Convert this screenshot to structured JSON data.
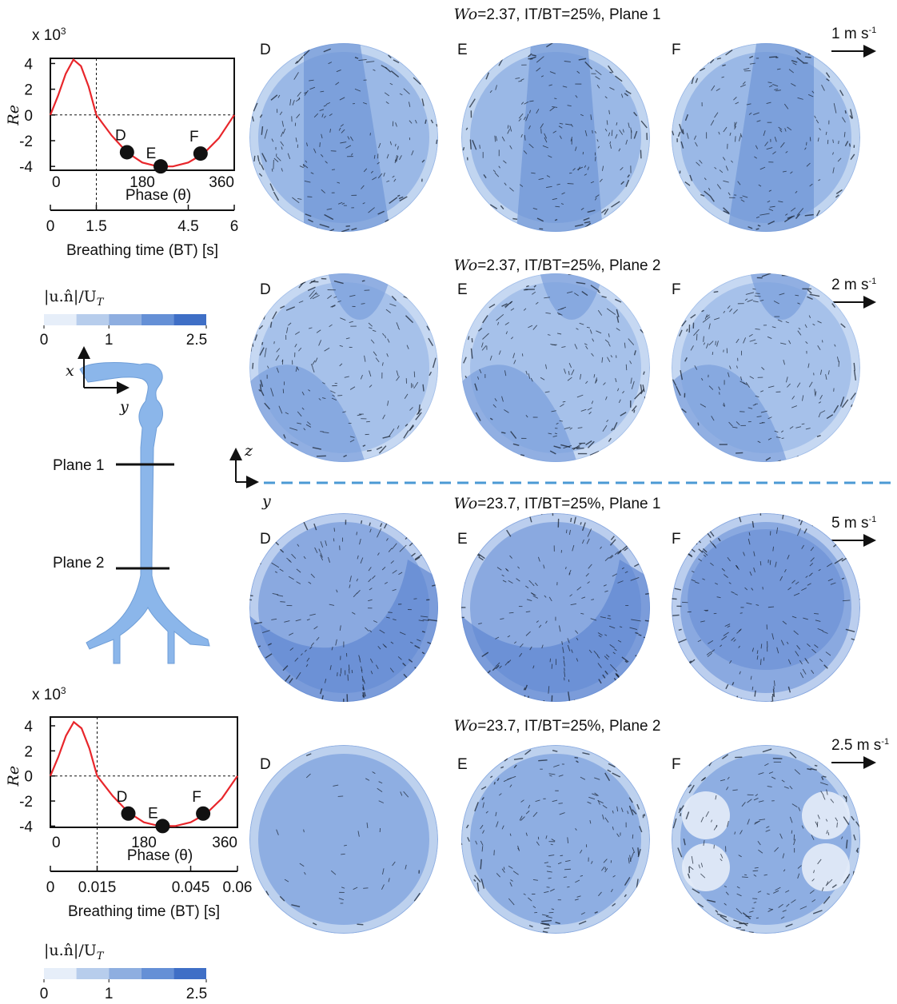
{
  "chart_data": [
    {
      "type": "line",
      "y_multiplier": "x 10",
      "y_multiplier_exp": "3",
      "ylabel": "Re",
      "x2label": "Phase (θ)",
      "x2lim": [
        0,
        360
      ],
      "x2ticks": [
        0,
        180,
        360
      ],
      "xlabel": "Breathing time (BT) [s]",
      "xlim": [
        0,
        6
      ],
      "xticks": [
        0,
        1.5,
        4.5,
        6
      ],
      "ylim": [
        -4.3,
        4.4
      ],
      "yticks": [
        4,
        2,
        0,
        -2,
        -4
      ],
      "vline_x": 1.5,
      "hline_y": 0,
      "color": "#e8262b",
      "x": [
        0,
        0.25,
        0.5,
        0.75,
        1.0,
        1.25,
        1.5,
        2,
        2.5,
        3,
        3.5,
        4,
        4.5,
        5,
        5.5,
        6
      ],
      "values": [
        0,
        1.5,
        3.2,
        4.3,
        3.8,
        2.2,
        0,
        -1.6,
        -2.9,
        -3.7,
        -4.0,
        -4.0,
        -3.7,
        -3.0,
        -1.8,
        0
      ],
      "points": {
        "x": [
          2.5,
          3.6,
          4.9
        ],
        "values": [
          -2.9,
          -4.0,
          -3.0
        ],
        "labels": [
          "D",
          "E",
          "F"
        ],
        "color": "#111111"
      }
    },
    {
      "type": "line",
      "y_multiplier": "x 10",
      "y_multiplier_exp": "3",
      "ylabel": "Re",
      "x2label": "Phase (θ)",
      "x2lim": [
        0,
        360
      ],
      "x2ticks": [
        0,
        180,
        360
      ],
      "xlabel": "Breathing time (BT) [s]",
      "xlim": [
        0,
        0.06
      ],
      "xticks": [
        0,
        0.015,
        0.045,
        0.06
      ],
      "ylim": [
        -4.1,
        4.7
      ],
      "yticks": [
        4,
        2,
        0,
        -2,
        -4
      ],
      "vline_x": 0.015,
      "hline_y": 0,
      "color": "#e8262b",
      "x": [
        0,
        0.0025,
        0.005,
        0.0075,
        0.01,
        0.0125,
        0.015,
        0.02,
        0.025,
        0.03,
        0.035,
        0.04,
        0.045,
        0.05,
        0.055,
        0.06
      ],
      "values": [
        0,
        1.5,
        3.2,
        4.3,
        3.8,
        2.2,
        0,
        -1.6,
        -2.9,
        -3.7,
        -4.0,
        -4.0,
        -3.7,
        -3.0,
        -1.8,
        0
      ],
      "points": {
        "x": [
          0.025,
          0.036,
          0.049
        ],
        "values": [
          -3.0,
          -4.0,
          -3.0
        ],
        "labels": [
          "D",
          "E",
          "F"
        ],
        "color": "#111111"
      }
    }
  ],
  "colorbars": [
    {
      "label": "|u.n̂|/U",
      "label_sub": "T",
      "ticks": [
        0,
        1,
        2.5
      ],
      "lim": [
        0,
        2.5
      ],
      "colors": [
        "#e6eef9",
        "#b7cdec",
        "#8eaee0",
        "#6590d6",
        "#3f6fc6"
      ]
    },
    {
      "label": "|u.n̂|/U",
      "label_sub": "T",
      "ticks": [
        0,
        1,
        2.5
      ],
      "lim": [
        0,
        2.5
      ],
      "colors": [
        "#e6eef9",
        "#b7cdec",
        "#8eaee0",
        "#6590d6",
        "#3f6fc6"
      ]
    }
  ],
  "airway": {
    "x": "x",
    "y": "y",
    "plane1": "Plane 1",
    "plane2": "Plane 2"
  },
  "axes_inset": {
    "z": "z",
    "y": "y"
  },
  "panels": [
    {
      "title_italic": "Wo",
      "title": "=2.37, IT/BT=25%, Plane 1",
      "scale": "1 m s",
      "scale_exp": "-1",
      "labels": [
        "D",
        "E",
        "F"
      ],
      "colors": [
        "#9ab8e6",
        "#6f96d6"
      ]
    },
    {
      "title_italic": "Wo",
      "title": "=2.37, IT/BT=25%, Plane 2",
      "scale": "2 m s",
      "scale_exp": "-1",
      "labels": [
        "D",
        "E",
        "F"
      ],
      "colors": [
        "#a6c1ea",
        "#7a9edb"
      ]
    },
    {
      "title_italic": "Wo",
      "title": "=23.7, IT/BT=25%, Plane 1",
      "scale": "5 m s",
      "scale_exp": "-1",
      "labels": [
        "D",
        "E",
        "F"
      ],
      "colors": [
        "#8aa9e0",
        "#5f88d2"
      ]
    },
    {
      "title_italic": "Wo",
      "title": "=23.7, IT/BT=25%, Plane 2",
      "scale": "2.5 m s",
      "scale_exp": "-1",
      "labels": [
        "D",
        "E",
        "F"
      ],
      "colors": [
        "#8eaee2",
        "#7ea2dc"
      ]
    }
  ]
}
